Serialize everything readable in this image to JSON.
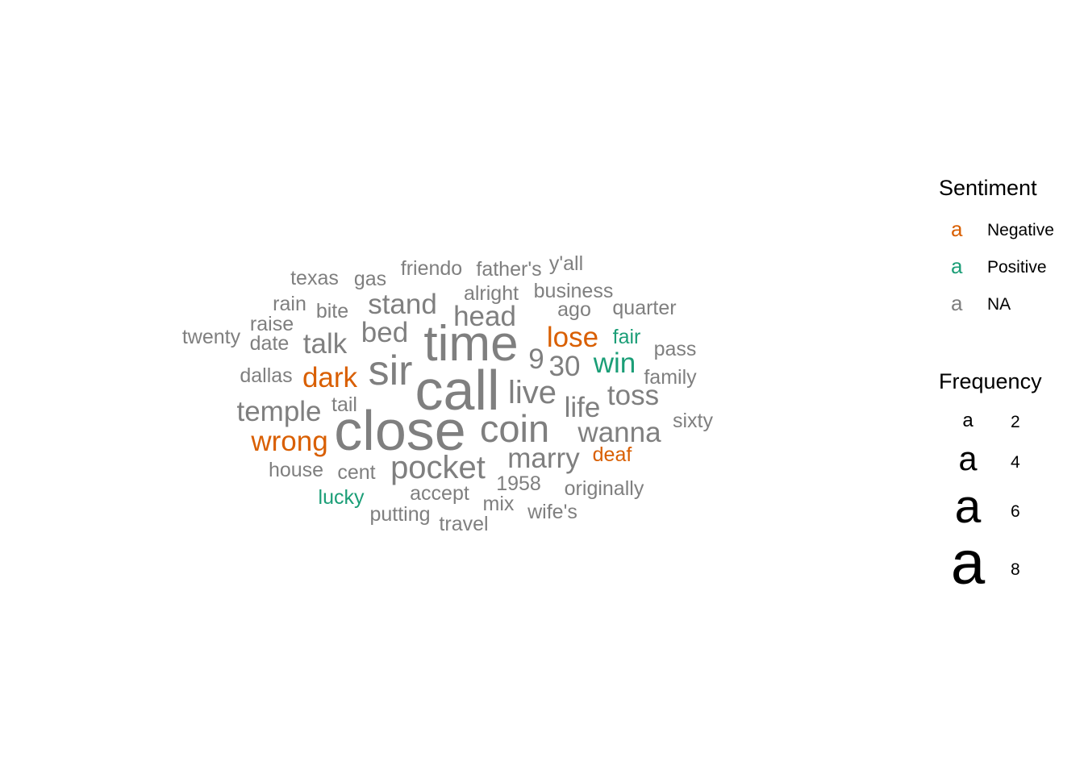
{
  "chart_data": {
    "type": "wordcloud",
    "colors": {
      "Negative": "#D95F02",
      "Positive": "#1B9E77",
      "NA": "#7F7F7F"
    },
    "words": [
      {
        "text": "close",
        "freq": 8,
        "sentiment": "NA"
      },
      {
        "text": "call",
        "freq": 8,
        "sentiment": "NA"
      },
      {
        "text": "time",
        "freq": 7,
        "sentiment": "NA"
      },
      {
        "text": "sir",
        "freq": 6,
        "sentiment": "NA"
      },
      {
        "text": "coin",
        "freq": 5,
        "sentiment": "NA"
      },
      {
        "text": "pocket",
        "freq": 4,
        "sentiment": "NA"
      },
      {
        "text": "live",
        "freq": 4,
        "sentiment": "NA"
      },
      {
        "text": "temple",
        "freq": 3,
        "sentiment": "NA"
      },
      {
        "text": "marry",
        "freq": 3,
        "sentiment": "NA"
      },
      {
        "text": "wanna",
        "freq": 3,
        "sentiment": "NA"
      },
      {
        "text": "toss",
        "freq": 3,
        "sentiment": "NA"
      },
      {
        "text": "stand",
        "freq": 3,
        "sentiment": "NA"
      },
      {
        "text": "talk",
        "freq": 3,
        "sentiment": "NA"
      },
      {
        "text": "bed",
        "freq": 3,
        "sentiment": "NA"
      },
      {
        "text": "head",
        "freq": 3,
        "sentiment": "NA"
      },
      {
        "text": "life",
        "freq": 3,
        "sentiment": "NA"
      },
      {
        "text": "9",
        "freq": 3,
        "sentiment": "NA"
      },
      {
        "text": "30",
        "freq": 3,
        "sentiment": "NA"
      },
      {
        "text": "wrong",
        "freq": 3,
        "sentiment": "Negative"
      },
      {
        "text": "dark",
        "freq": 3,
        "sentiment": "Negative"
      },
      {
        "text": "lose",
        "freq": 3,
        "sentiment": "Negative"
      },
      {
        "text": "win",
        "freq": 3,
        "sentiment": "Positive"
      },
      {
        "text": "deaf",
        "freq": 2,
        "sentiment": "Negative"
      },
      {
        "text": "fair",
        "freq": 2,
        "sentiment": "Positive"
      },
      {
        "text": "lucky",
        "freq": 2,
        "sentiment": "Positive"
      },
      {
        "text": "texas",
        "freq": 2,
        "sentiment": "NA"
      },
      {
        "text": "gas",
        "freq": 2,
        "sentiment": "NA"
      },
      {
        "text": "friendo",
        "freq": 2,
        "sentiment": "NA"
      },
      {
        "text": "father's",
        "freq": 2,
        "sentiment": "NA"
      },
      {
        "text": "y'all",
        "freq": 2,
        "sentiment": "NA"
      },
      {
        "text": "alright",
        "freq": 2,
        "sentiment": "NA"
      },
      {
        "text": "business",
        "freq": 2,
        "sentiment": "NA"
      },
      {
        "text": "rain",
        "freq": 2,
        "sentiment": "NA"
      },
      {
        "text": "bite",
        "freq": 2,
        "sentiment": "NA"
      },
      {
        "text": "ago",
        "freq": 2,
        "sentiment": "NA"
      },
      {
        "text": "quarter",
        "freq": 2,
        "sentiment": "NA"
      },
      {
        "text": "raise",
        "freq": 2,
        "sentiment": "NA"
      },
      {
        "text": "twenty",
        "freq": 2,
        "sentiment": "NA"
      },
      {
        "text": "date",
        "freq": 2,
        "sentiment": "NA"
      },
      {
        "text": "pass",
        "freq": 2,
        "sentiment": "NA"
      },
      {
        "text": "dallas",
        "freq": 2,
        "sentiment": "NA"
      },
      {
        "text": "family",
        "freq": 2,
        "sentiment": "NA"
      },
      {
        "text": "tail",
        "freq": 2,
        "sentiment": "NA"
      },
      {
        "text": "sixty",
        "freq": 2,
        "sentiment": "NA"
      },
      {
        "text": "house",
        "freq": 2,
        "sentiment": "NA"
      },
      {
        "text": "cent",
        "freq": 2,
        "sentiment": "NA"
      },
      {
        "text": "1958",
        "freq": 2,
        "sentiment": "NA"
      },
      {
        "text": "originally",
        "freq": 2,
        "sentiment": "NA"
      },
      {
        "text": "accept",
        "freq": 2,
        "sentiment": "NA"
      },
      {
        "text": "mix",
        "freq": 2,
        "sentiment": "NA"
      },
      {
        "text": "wife's",
        "freq": 2,
        "sentiment": "NA"
      },
      {
        "text": "putting",
        "freq": 2,
        "sentiment": "NA"
      },
      {
        "text": "travel",
        "freq": 2,
        "sentiment": "NA"
      }
    ],
    "legend": {
      "sentiment_title": "Sentiment",
      "sentiment_key_glyph": "a",
      "sentiment_entries": [
        "Negative",
        "Positive",
        "NA"
      ],
      "frequency_title": "Frequency",
      "frequency_key_glyph": "a",
      "frequency_entries": [
        "2",
        "4",
        "6",
        "8"
      ]
    }
  }
}
